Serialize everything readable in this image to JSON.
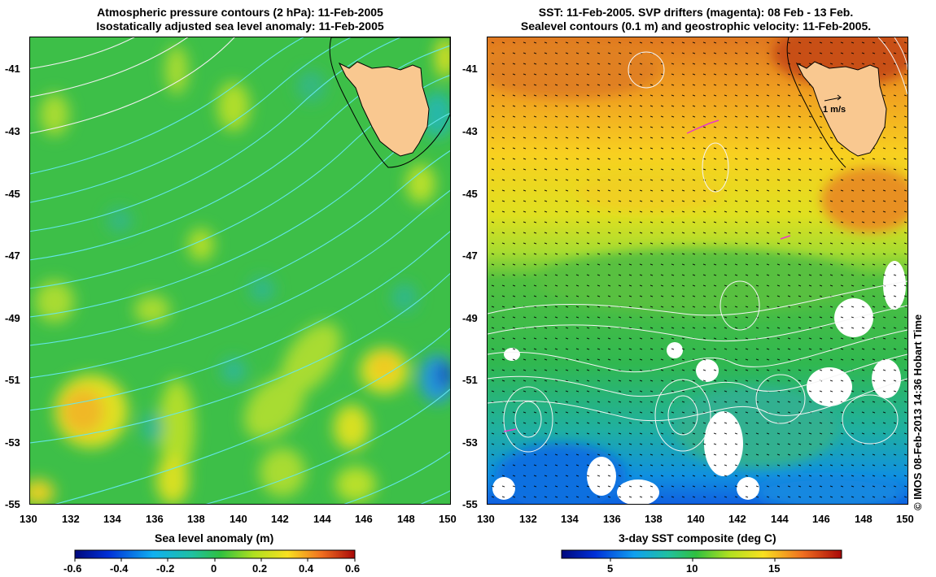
{
  "left_panel": {
    "title_line1": "Atmospheric pressure contours (2 hPa): 11-Feb-2005",
    "title_line2": "Isostatically adjusted sea level anomaly: 11-Feb-2005",
    "lat_labels": [
      "-41",
      "-43",
      "-45",
      "-47",
      "-49",
      "-51",
      "-53",
      "-55"
    ],
    "lon_labels": [
      "130",
      "132",
      "134",
      "136",
      "138",
      "140",
      "142",
      "144",
      "146",
      "148",
      "150"
    ],
    "colorbar": {
      "label": "Sea level anomaly (m)",
      "ticks": [
        "-0.6",
        "-0.4",
        "-0.2",
        "0",
        "0.2",
        "0.4",
        "0.6"
      ],
      "min": -0.6,
      "max": 0.6
    }
  },
  "right_panel": {
    "title_line1": "SST: 11-Feb-2005. SVP drifters (magenta): 08 Feb - 13 Feb.",
    "title_line2": "Sealevel contours (0.1 m) and geostrophic velocity: 11-Feb-2005.",
    "lat_labels": [
      "-41",
      "-43",
      "-45",
      "-47",
      "-49",
      "-51",
      "-53",
      "-55"
    ],
    "lon_labels": [
      "130",
      "132",
      "134",
      "136",
      "138",
      "140",
      "142",
      "144",
      "146",
      "148",
      "150"
    ],
    "velocity_scale_label": "1 m/s",
    "colorbar": {
      "label": "3-day SST composite (deg C)",
      "ticks": [
        "5",
        "10",
        "15"
      ],
      "min": 2,
      "max": 19
    }
  },
  "credit": "© IMOS 08-Feb-2013 14:36 Hobart Time",
  "colors": {
    "land": "#f9c890",
    "coast": "#000000",
    "pressure_contour": "#66e8f0",
    "sealevel_contour": "#f4f4f4",
    "drifter": "#e838c8",
    "cloud": "#ffffff"
  },
  "map_extent": {
    "lon": [
      130,
      150
    ],
    "lat": [
      -55,
      -40
    ]
  }
}
